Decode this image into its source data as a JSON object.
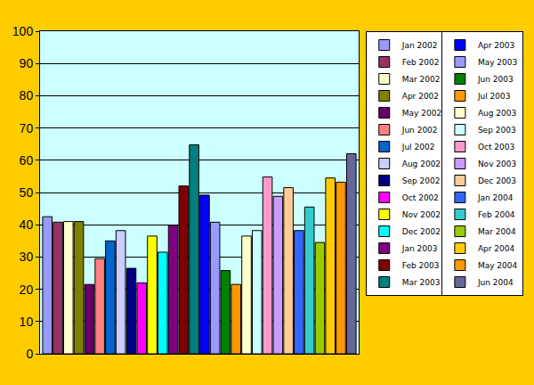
{
  "chart_data": {
    "type": "bar",
    "categories": [
      "Jan 2002",
      "Feb 2002",
      "Mar 2002",
      "Apr 2002",
      "May 2002",
      "Jun 2002",
      "Jul 2002",
      "Aug 2002",
      "Sep 2002",
      "Oct 2002",
      "Nov 2002",
      "Dec 2002",
      "Jan 2003",
      "Feb 2003",
      "Mar 2003",
      "Apr 2003",
      "May 2003",
      "Jun 2003",
      "Jul 2003",
      "Aug 2003",
      "Sep 2003",
      "Oct 2003",
      "Nov 2003",
      "Dec 2003",
      "Jan 2004",
      "Feb 2004",
      "Mar 2004",
      "Apr 2004",
      "May 2004",
      "Jun 2004"
    ],
    "values": [
      42.5,
      40.8,
      41,
      41,
      21.5,
      29.5,
      35,
      38.2,
      26.5,
      22,
      36.5,
      31.5,
      39.8,
      52,
      64.8,
      49.2,
      40.8,
      25.8,
      21.5,
      36.5,
      38.2,
      54.8,
      48.8,
      51.5,
      38.2,
      45.5,
      34.5,
      54.5,
      53.2,
      62
    ],
    "colors": [
      "#9999FF",
      "#993366",
      "#FFFFCC",
      "#808000",
      "#660066",
      "#FF8080",
      "#0066CC",
      "#CCCCFF",
      "#000080",
      "#FF00FF",
      "#FFFF00",
      "#00FFFF",
      "#800080",
      "#800000",
      "#008080",
      "#0000FF",
      "#9999FF",
      "#008000",
      "#FF9900",
      "#FFFFCC",
      "#CCFFFF",
      "#FF99CC",
      "#CC99FF",
      "#FFCC99",
      "#3366FF",
      "#33CCCC",
      "#99CC00",
      "#FFCC00",
      "#FF9900",
      "#666699"
    ],
    "ylim": [
      0,
      100
    ],
    "yticks": [
      0,
      10,
      20,
      30,
      40,
      50,
      60,
      70,
      80,
      90,
      100
    ],
    "grid": true,
    "legend": "right",
    "tick_labels": "y"
  }
}
